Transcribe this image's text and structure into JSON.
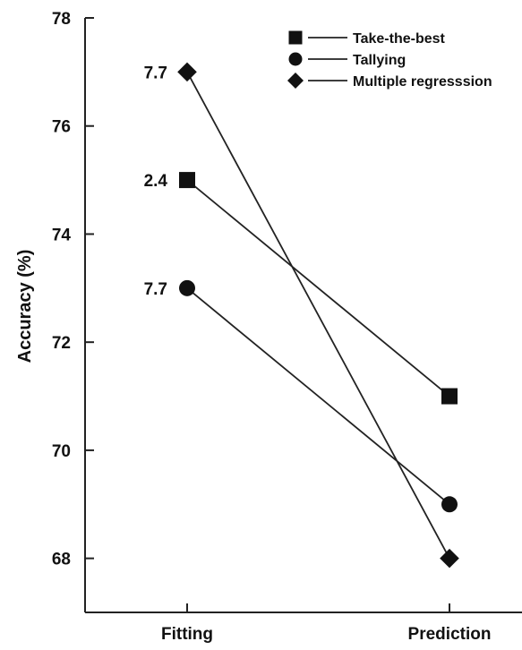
{
  "chart_data": {
    "type": "line",
    "title": "",
    "xlabel": "",
    "ylabel": "Accuracy (%)",
    "categories": [
      "Fitting",
      "Prediction"
    ],
    "ylim": [
      67,
      78
    ],
    "yticks": [
      68,
      70,
      72,
      74,
      76,
      78
    ],
    "grid": false,
    "legend_position": "top-right",
    "series": [
      {
        "name": "Take-the-best",
        "marker": "square",
        "values": [
          75,
          71
        ],
        "label": "2.4"
      },
      {
        "name": "Tallying",
        "marker": "circle",
        "values": [
          73,
          69
        ],
        "label": "7.7"
      },
      {
        "name": "Multiple regresssion",
        "marker": "diamond",
        "values": [
          77,
          68
        ],
        "label": "7.7"
      }
    ],
    "line_color": "#222222",
    "marker_color": "#111111"
  }
}
